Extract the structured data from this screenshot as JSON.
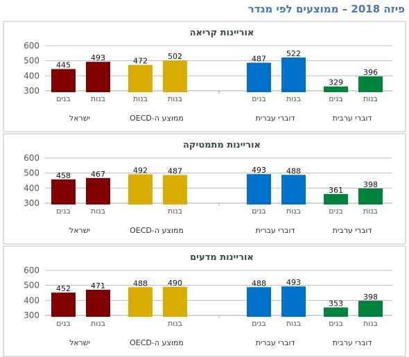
{
  "title": "פיזה 2018 – ממוצעים לפי מגדר",
  "colors": {
    "israel": "#7f0000",
    "oecd": "#d9ad00",
    "hebrew": "#0070c8",
    "arabic": "#00843d",
    "frame": "#bfbfbf",
    "grid": "#bdbdbd",
    "baseline": "#a6a6a6"
  },
  "chart_data": [
    {
      "type": "bar",
      "title": "אוריינות קריאה",
      "yticks": [
        300,
        400,
        500,
        600
      ],
      "ylim": [
        300,
        600
      ],
      "grid": true,
      "groups": [
        {
          "name": "ישראל",
          "color_key": "israel",
          "bars": [
            {
              "label": "בנים",
              "value": 445
            },
            {
              "label": "בנות",
              "value": 493
            }
          ]
        },
        {
          "name": "ממוצע ה-OECD",
          "color_key": "oecd",
          "bars": [
            {
              "label": "בנות",
              "value": 472
            },
            {
              "label": "בנות",
              "value": 502
            }
          ]
        },
        {
          "name": "דוברי עברית",
          "color_key": "hebrew",
          "bars": [
            {
              "label": "בנים",
              "value": 487
            },
            {
              "label": "בנות",
              "value": 522
            }
          ]
        },
        {
          "name": "דוברי ערבית",
          "color_key": "arabic",
          "bars": [
            {
              "label": "בנים",
              "value": 329
            },
            {
              "label": "בנות",
              "value": 396
            }
          ]
        }
      ]
    },
    {
      "type": "bar",
      "title": "אוריינות מתמטיקה",
      "yticks": [
        300,
        400,
        500,
        600
      ],
      "ylim": [
        300,
        600
      ],
      "grid": true,
      "groups": [
        {
          "name": "ישראל",
          "color_key": "israel",
          "bars": [
            {
              "label": "בנים",
              "value": 458
            },
            {
              "label": "בנות",
              "value": 467
            }
          ]
        },
        {
          "name": "ממוצע ה-OECD",
          "color_key": "oecd",
          "bars": [
            {
              "label": "",
              "value": 492
            },
            {
              "label": "בנות",
              "value": 487
            }
          ]
        },
        {
          "name": "דוברי עברית",
          "color_key": "hebrew",
          "bars": [
            {
              "label": "בנים",
              "value": 493
            },
            {
              "label": "בנות",
              "value": 488
            }
          ]
        },
        {
          "name": "דוברי ערבית",
          "color_key": "arabic",
          "bars": [
            {
              "label": "בנים",
              "value": 361
            },
            {
              "label": "בנות",
              "value": 398
            }
          ]
        }
      ]
    },
    {
      "type": "bar",
      "title": "אוריינות מדעים",
      "yticks": [
        300,
        400,
        500,
        600
      ],
      "ylim": [
        300,
        600
      ],
      "grid": true,
      "groups": [
        {
          "name": "ישראל",
          "color_key": "israel",
          "bars": [
            {
              "label": "בנים",
              "value": 452
            },
            {
              "label": "בנות",
              "value": 471
            }
          ]
        },
        {
          "name": "ממוצע ה-OECD",
          "color_key": "oecd",
          "bars": [
            {
              "label": "",
              "value": 488
            },
            {
              "label": "בנות",
              "value": 490
            }
          ]
        },
        {
          "name": "דוברי עברית",
          "color_key": "hebrew",
          "bars": [
            {
              "label": "בנים",
              "value": 488
            },
            {
              "label": "בנות",
              "value": 493
            }
          ]
        },
        {
          "name": "דוברי ערבית",
          "color_key": "arabic",
          "bars": [
            {
              "label": "בנים",
              "value": 353
            },
            {
              "label": "בנות",
              "value": 398
            }
          ]
        }
      ]
    }
  ]
}
